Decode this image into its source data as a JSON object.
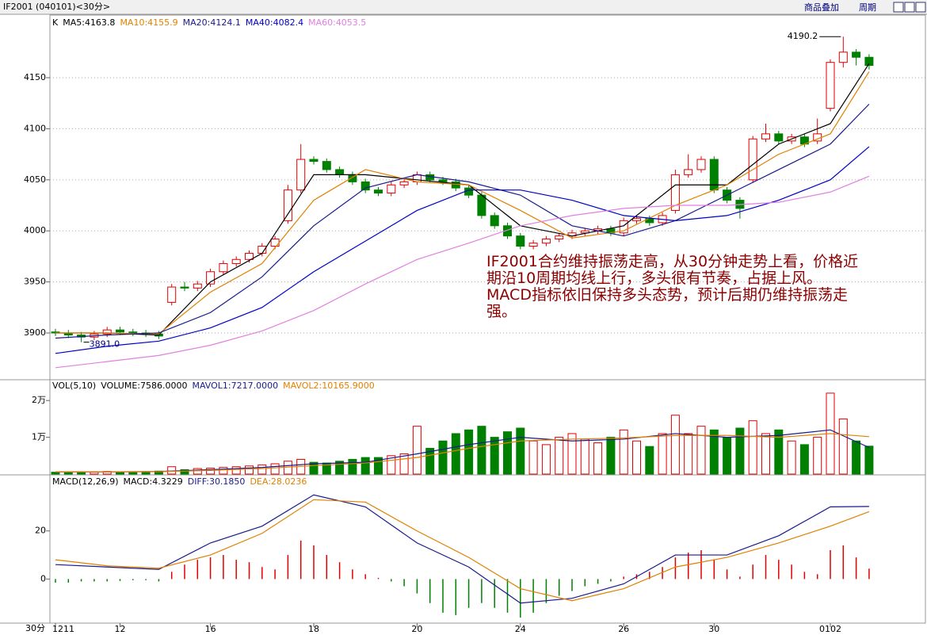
{
  "header": {
    "title": "IF2001 (040101)<30分>",
    "buttons": [
      "商品叠加",
      "周期"
    ]
  },
  "period_label": "30分",
  "chart_data": [
    {
      "type": "candlestick",
      "label": "K",
      "categories": [
        "1211",
        null,
        null,
        null,
        null,
        "12",
        null,
        null,
        null,
        null,
        null,
        null,
        "16",
        null,
        null,
        null,
        null,
        null,
        null,
        null,
        "18",
        null,
        null,
        null,
        null,
        null,
        null,
        null,
        "20",
        null,
        null,
        null,
        null,
        null,
        null,
        null,
        "24",
        null,
        null,
        null,
        null,
        null,
        null,
        null,
        "26",
        null,
        null,
        null,
        null,
        null,
        null,
        "30",
        null,
        null,
        null,
        null,
        null,
        null,
        null,
        null,
        "0102",
        null,
        null,
        null
      ],
      "open": [
        3901,
        3900,
        3898,
        3896,
        3899,
        3903,
        3901,
        3900,
        3899,
        3930,
        3945,
        3944,
        3948,
        3960,
        3968,
        3972,
        3978,
        3985,
        4010,
        4040,
        4070,
        4068,
        4060,
        4055,
        4048,
        4040,
        4037,
        4045,
        4048,
        4055,
        4050,
        4048,
        4042,
        4035,
        4015,
        4005,
        3995,
        3985,
        3988,
        3992,
        3995,
        3998,
        4000,
        4002,
        3998,
        4010,
        4012,
        4008,
        4020,
        4055,
        4060,
        4070,
        4040,
        4030,
        4050,
        4090,
        4095,
        4088,
        4092,
        4088,
        4120,
        4165,
        4175,
        4170
      ],
      "high": [
        3904,
        3903,
        3901,
        3902,
        3906,
        3906,
        3904,
        3903,
        3902,
        3948,
        3950,
        3951,
        3963,
        3971,
        3975,
        3981,
        3988,
        3995,
        4045,
        4085,
        4073,
        4071,
        4063,
        4058,
        4051,
        4043,
        4048,
        4051,
        4058,
        4058,
        4053,
        4051,
        4045,
        4038,
        4018,
        4008,
        3998,
        3991,
        3995,
        3998,
        4001,
        4003,
        4005,
        4005,
        4013,
        4015,
        4015,
        4018,
        4060,
        4075,
        4073,
        4073,
        4043,
        4033,
        4093,
        4105,
        4098,
        4095,
        4095,
        4110,
        4168,
        4190.2,
        4178,
        4173
      ],
      "low": [
        3897,
        3895,
        3891.0,
        3893,
        3896,
        3898,
        3897,
        3896,
        3894,
        3927,
        3941,
        3941,
        3945,
        3957,
        3965,
        3969,
        3975,
        3982,
        4007,
        4037,
        4065,
        4057,
        4052,
        4045,
        4037,
        4034,
        4034,
        4042,
        4045,
        4047,
        4045,
        4039,
        4032,
        4012,
        4002,
        3992,
        3982,
        3982,
        3985,
        3989,
        3992,
        3995,
        3997,
        3995,
        3995,
        4007,
        4005,
        4005,
        4017,
        4052,
        4057,
        4037,
        4027,
        4012,
        4047,
        4087,
        4085,
        4085,
        4082,
        4085,
        4117,
        4160,
        4162,
        4158
      ],
      "close": [
        3900,
        3898,
        3896,
        3899,
        3903,
        3901,
        3900,
        3899,
        3897,
        3945,
        3944,
        3948,
        3960,
        3968,
        3972,
        3978,
        3985,
        3992,
        4040,
        4070,
        4068,
        4060,
        4055,
        4048,
        4040,
        4037,
        4045,
        4048,
        4055,
        4050,
        4048,
        4042,
        4035,
        4015,
        4005,
        3995,
        3985,
        3988,
        3992,
        3995,
        3998,
        4000,
        4002,
        3998,
        4010,
        4012,
        4008,
        4015,
        4055,
        4060,
        4070,
        4040,
        4030,
        4022,
        4090,
        4095,
        4088,
        4092,
        4085,
        4095,
        4165,
        4175,
        4170,
        4162
      ],
      "up_color": "#e00000",
      "down_color": "#008000",
      "ylim": [
        3855,
        4209
      ],
      "yticks": [
        3900,
        3950,
        4000,
        4050,
        4100,
        4150
      ],
      "grid": true,
      "series": [
        {
          "name": "MA5:4163.8",
          "color": "#000000",
          "x": [
            0,
            4,
            8,
            12,
            16,
            20,
            24,
            28,
            32,
            36,
            40,
            44,
            48,
            52,
            56,
            60,
            63
          ],
          "values": [
            3900,
            3900,
            3898,
            3950,
            3978,
            4055,
            4055,
            4050,
            4045,
            4005,
            3995,
            4005,
            4045,
            4045,
            4085,
            4105,
            4163.8
          ]
        },
        {
          "name": "MA10:4155.9",
          "color": "#e08000",
          "x": [
            0,
            4,
            8,
            12,
            16,
            20,
            24,
            28,
            32,
            36,
            40,
            44,
            48,
            52,
            56,
            60,
            63
          ],
          "values": [
            3900,
            3900,
            3899,
            3940,
            3968,
            4030,
            4060,
            4048,
            4045,
            4020,
            3993,
            4000,
            4025,
            4045,
            4075,
            4095,
            4155.9
          ]
        },
        {
          "name": "MA20:4124.1",
          "color": "#1a1a8c",
          "x": [
            0,
            4,
            8,
            12,
            16,
            20,
            24,
            28,
            32,
            36,
            40,
            44,
            48,
            52,
            56,
            60,
            63
          ],
          "values": [
            3895,
            3898,
            3900,
            3920,
            3955,
            4005,
            4042,
            4055,
            4048,
            4035,
            4005,
            3995,
            4010,
            4035,
            4060,
            4085,
            4124.1
          ]
        },
        {
          "name": "MA40:4082.4",
          "color": "#0000c8",
          "x": [
            0,
            4,
            8,
            12,
            16,
            20,
            24,
            28,
            32,
            36,
            40,
            44,
            48,
            52,
            56,
            60,
            63
          ],
          "values": [
            3880,
            3887,
            3892,
            3905,
            3925,
            3960,
            3990,
            4020,
            4040,
            4040,
            4030,
            4015,
            4010,
            4015,
            4030,
            4050,
            4082.4
          ]
        },
        {
          "name": "MA60:4053.5",
          "color": "#e080e0",
          "x": [
            0,
            4,
            8,
            12,
            16,
            20,
            24,
            28,
            32,
            36,
            40,
            44,
            48,
            52,
            56,
            60,
            63
          ],
          "values": [
            3866,
            3872,
            3878,
            3888,
            3902,
            3922,
            3948,
            3972,
            3988,
            4005,
            4015,
            4022,
            4025,
            4025,
            4028,
            4038,
            4053.5
          ]
        }
      ],
      "annotations": [
        {
          "value": 4190.2,
          "label": "4190.2"
        },
        {
          "value": 3891.0,
          "label": "3891.0"
        }
      ],
      "note": "IF2001合约维持振荡走高，从30分钟走势上看，价格近期沿10周期均线上行，多头很有节奏，占据上风。MACD指标依旧保持多头态势，预计后期仍维持振荡走强。"
    },
    {
      "type": "bar",
      "label": "VOL(5,10)",
      "values_name": "VOLUME:7586.0000",
      "values": [
        500,
        400,
        600,
        500,
        700,
        600,
        500,
        600,
        800,
        2000,
        1200,
        1500,
        1600,
        1800,
        2000,
        2200,
        2500,
        2800,
        3500,
        4000,
        3200,
        3000,
        3500,
        4000,
        4500,
        4500,
        5000,
        5500,
        13000,
        7000,
        9000,
        11000,
        12000,
        13000,
        10000,
        11500,
        12500,
        9000,
        8000,
        10000,
        11000,
        9500,
        8500,
        10000,
        12000,
        9000,
        7500,
        11000,
        16000,
        11000,
        13000,
        12000,
        10000,
        12500,
        14500,
        11000,
        12000,
        9000,
        8000,
        10000,
        22000,
        15000,
        9000,
        7586
      ],
      "ylim": [
        0,
        25000
      ],
      "yticks": [
        {
          "value": 10000,
          "label": "1万"
        },
        {
          "value": 20000,
          "label": "2万"
        }
      ],
      "series": [
        {
          "name": "MAVOL1:7217.0000",
          "color": "#1a1a8c",
          "x": [
            0,
            4,
            8,
            12,
            16,
            20,
            24,
            28,
            32,
            36,
            40,
            44,
            48,
            52,
            56,
            60,
            63
          ],
          "values": [
            600,
            600,
            700,
            1200,
            1800,
            2800,
            3200,
            5500,
            8000,
            10000,
            9000,
            9500,
            11000,
            10000,
            10500,
            12000,
            7217
          ]
        },
        {
          "name": "MAVOL2:10165.9000",
          "color": "#e08000",
          "x": [
            0,
            4,
            8,
            12,
            16,
            20,
            24,
            28,
            32,
            36,
            40,
            44,
            48,
            52,
            56,
            60,
            63
          ],
          "values": [
            600,
            600,
            650,
            1000,
            1500,
            2300,
            3000,
            4500,
            7000,
            9000,
            9500,
            9800,
            10500,
            10500,
            10000,
            11000,
            10165.9
          ]
        }
      ]
    },
    {
      "type": "macd",
      "label": "MACD(12,26,9)",
      "values_name": "MACD:4.3229",
      "values": [
        -1.5,
        -1.5,
        -1,
        -1,
        -1,
        -0.8,
        -0.5,
        -0.5,
        -1,
        3,
        6,
        8,
        9,
        10,
        8,
        7,
        5,
        4,
        10,
        16,
        14,
        10,
        7,
        4,
        2,
        0.5,
        -1,
        -3,
        -6,
        -10,
        -14,
        -15,
        -12,
        -10,
        -12,
        -14,
        -16,
        -14,
        -10,
        -7,
        -5,
        -3,
        -2,
        -1,
        1,
        2,
        3,
        5,
        9,
        11,
        12,
        8,
        4,
        1,
        6,
        10,
        8,
        6,
        3,
        2,
        12,
        14,
        9,
        4.3229
      ],
      "ylim": [
        -18,
        42
      ],
      "yticks": [
        0,
        20
      ],
      "series": [
        {
          "name": "DIFF:30.1850",
          "color": "#1a1a8c",
          "x": [
            0,
            4,
            8,
            12,
            16,
            20,
            24,
            28,
            32,
            36,
            40,
            44,
            48,
            52,
            56,
            60,
            63
          ],
          "values": [
            6,
            5,
            4,
            15,
            22,
            35,
            30,
            15,
            5,
            -10,
            -8,
            -2,
            10,
            10,
            18,
            30,
            30.185
          ]
        },
        {
          "name": "DEA:28.0236",
          "color": "#e08000",
          "x": [
            0,
            4,
            8,
            12,
            16,
            20,
            24,
            28,
            32,
            36,
            40,
            44,
            48,
            52,
            56,
            60,
            63
          ],
          "values": [
            8,
            5.5,
            4.5,
            10,
            19,
            33,
            32,
            20,
            9,
            -4,
            -9,
            -4,
            5,
            9,
            15,
            22,
            28.0236
          ]
        }
      ]
    }
  ]
}
